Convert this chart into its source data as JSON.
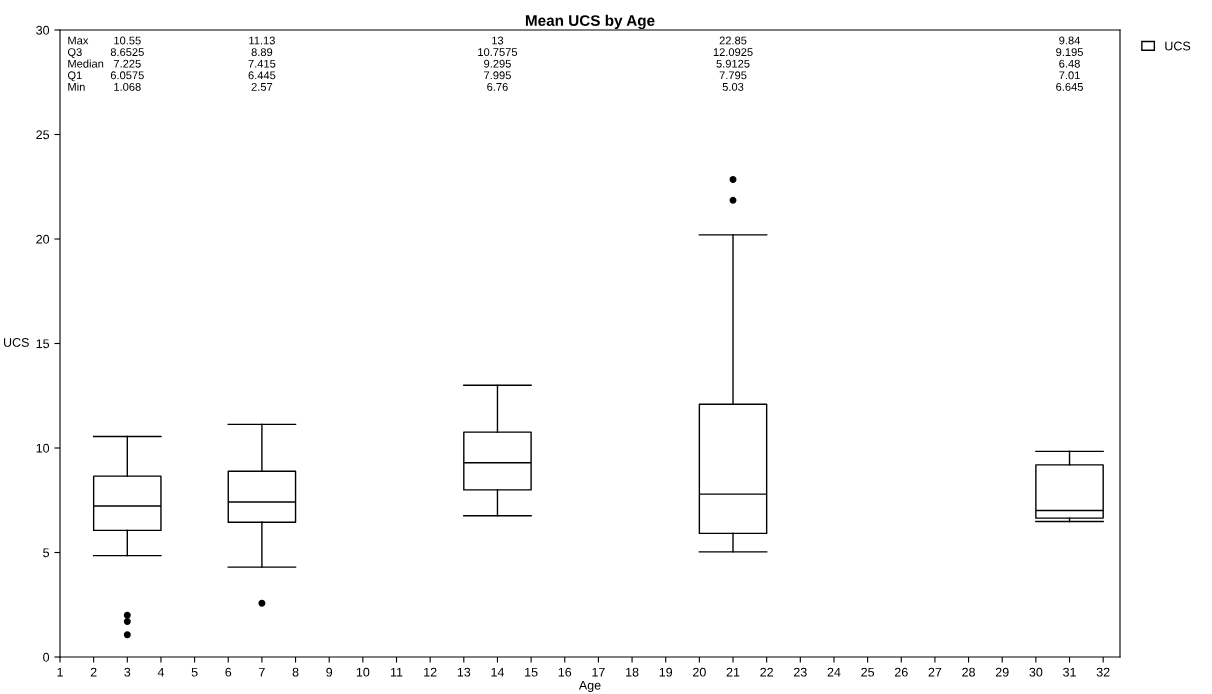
{
  "chart_data": {
    "type": "box",
    "title": "Mean UCS by Age",
    "xlabel": "Age",
    "ylabel": "UCS",
    "x": [
      3,
      7,
      14,
      21,
      31
    ],
    "series": [
      {
        "name": "UCS",
        "color": "#000000",
        "boxes": [
          {
            "low": 4.85,
            "q1": 6.0575,
            "median": 7.225,
            "q3": 8.6525,
            "high": 10.55,
            "outliers": [
              2.0,
              1.7,
              1.068
            ]
          },
          {
            "low": 4.3,
            "q1": 6.445,
            "median": 7.415,
            "q3": 8.89,
            "high": 11.13,
            "outliers": [
              2.57
            ]
          },
          {
            "low": 6.76,
            "q1": 7.995,
            "median": 9.295,
            "q3": 10.7575,
            "high": 13
          },
          {
            "low": 5.03,
            "q1": 5.9125,
            "median": 7.795,
            "q3": 12.0925,
            "high": 20.2,
            "outliers": [
              21.85,
              22.85
            ]
          },
          {
            "low": 6.48,
            "q1": 6.645,
            "median": 7.01,
            "q3": 9.195,
            "high": 9.84
          }
        ]
      }
    ],
    "xlim": [
      1,
      32.5
    ],
    "xticks": [
      1,
      2,
      3,
      4,
      5,
      6,
      7,
      8,
      9,
      10,
      11,
      12,
      13,
      14,
      15,
      16,
      17,
      18,
      19,
      20,
      21,
      22,
      23,
      24,
      25,
      26,
      27,
      28,
      29,
      30,
      31,
      32
    ],
    "ylim": [
      0,
      30
    ],
    "yticks": [
      0,
      5,
      10,
      15,
      20,
      25,
      30
    ],
    "grid": false,
    "legend": "top right",
    "annotations": [
      "Max",
      "10.55",
      "11.13",
      "13",
      "22.85",
      "9.84",
      "Q3",
      "8.6525",
      "8.89",
      "10.7575",
      "12.0925",
      "9.195",
      "Median",
      "7.225",
      "7.415",
      "9.295",
      "5.9125",
      "6.48",
      "Q1",
      "6.0575",
      "6.445",
      "7.995",
      "7.795",
      "7.01",
      "Min",
      "1.068",
      "2.57",
      "6.76",
      "5.03",
      "6.645"
    ]
  }
}
